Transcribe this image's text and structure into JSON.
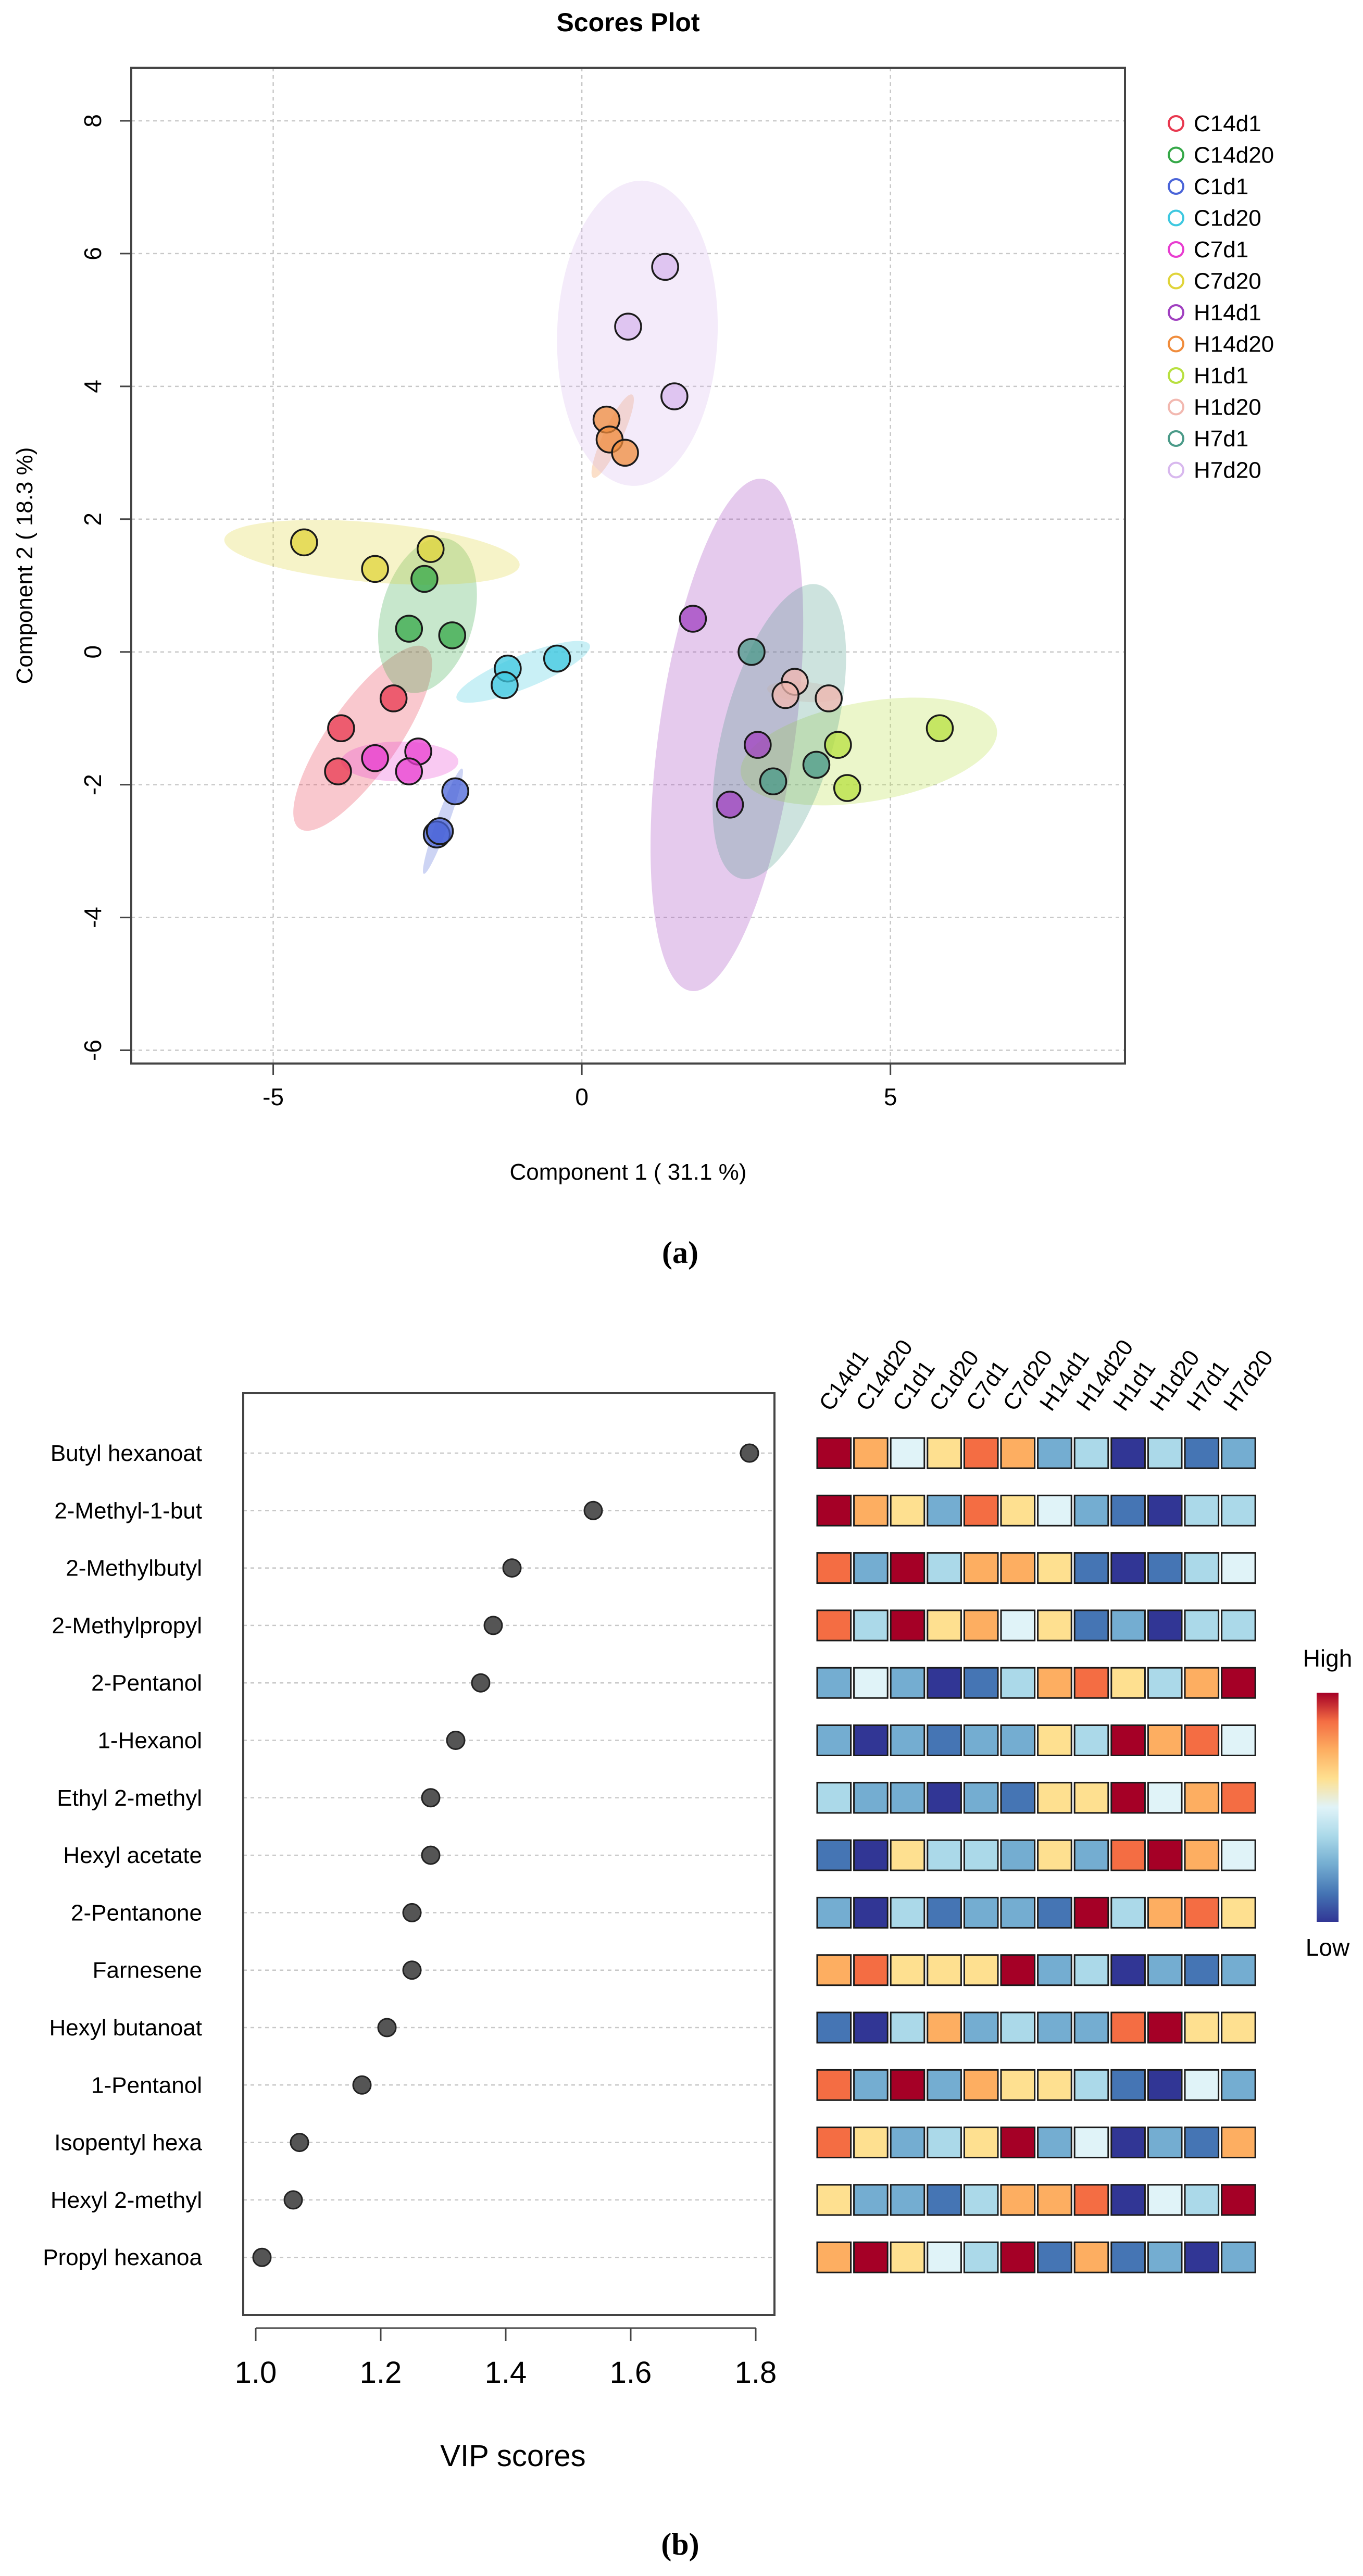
{
  "panel_labels": {
    "a": "(a)",
    "b": "(b)"
  },
  "chart_data": [
    {
      "type": "scatter",
      "title": "Scores Plot",
      "xlabel": "Component 1 ( 31.1 %)",
      "ylabel": "Component 2 ( 18.3 %)",
      "xlim": [
        -7.3,
        8.8
      ],
      "ylim": [
        -6.2,
        8.8
      ],
      "xticks": [
        -5,
        0,
        5
      ],
      "yticks": [
        -6,
        -4,
        -2,
        0,
        2,
        4,
        6,
        8
      ],
      "grid": true,
      "legend_position": "right",
      "groups": [
        {
          "name": "C14d1",
          "color": "#e8384f",
          "points": [
            [
              -3.9,
              -1.15
            ],
            [
              -3.05,
              -0.7
            ],
            [
              -3.95,
              -1.8
            ]
          ],
          "ellipse": {
            "cx": -3.55,
            "cy": -1.3,
            "rx": 1.7,
            "ry": 0.55,
            "angle": 55
          }
        },
        {
          "name": "C14d20",
          "color": "#35a848",
          "points": [
            [
              -2.55,
              1.1
            ],
            [
              -2.8,
              0.35
            ],
            [
              -2.1,
              0.25
            ]
          ],
          "ellipse": {
            "cx": -2.5,
            "cy": 0.55,
            "rx": 1.2,
            "ry": 0.75,
            "angle": 75
          }
        },
        {
          "name": "C1d1",
          "color": "#4a64d8",
          "points": [
            [
              -2.05,
              -2.1
            ],
            [
              -2.35,
              -2.75
            ],
            [
              -2.3,
              -2.7
            ]
          ],
          "ellipse": {
            "cx": -2.25,
            "cy": -2.55,
            "rx": 0.85,
            "ry": 0.1,
            "angle": 70
          }
        },
        {
          "name": "C1d20",
          "color": "#3ec8e0",
          "points": [
            [
              -1.2,
              -0.25
            ],
            [
              -1.25,
              -0.5
            ],
            [
              -0.4,
              -0.1
            ]
          ],
          "ellipse": {
            "cx": -0.95,
            "cy": -0.3,
            "rx": 1.15,
            "ry": 0.25,
            "angle": 22
          }
        },
        {
          "name": "C7d1",
          "color": "#e83dd0",
          "points": [
            [
              -3.35,
              -1.6
            ],
            [
              -2.65,
              -1.5
            ],
            [
              -2.8,
              -1.8
            ]
          ],
          "ellipse": {
            "cx": -2.95,
            "cy": -1.65,
            "rx": 0.95,
            "ry": 0.3,
            "angle": 0
          }
        },
        {
          "name": "C7d20",
          "color": "#e0d43a",
          "points": [
            [
              -4.5,
              1.65
            ],
            [
              -3.35,
              1.25
            ],
            [
              -2.45,
              1.55
            ]
          ],
          "ellipse": {
            "cx": -3.4,
            "cy": 1.5,
            "rx": 2.4,
            "ry": 0.45,
            "angle": -5
          }
        },
        {
          "name": "H14d1",
          "color": "#a040c0",
          "points": [
            [
              1.8,
              0.5
            ],
            [
              2.85,
              -1.4
            ],
            [
              2.4,
              -2.3
            ]
          ],
          "ellipse": {
            "cx": 2.35,
            "cy": -1.25,
            "rx": 3.9,
            "ry": 1.1,
            "angle": 82
          }
        },
        {
          "name": "H14d20",
          "color": "#f08c3c",
          "points": [
            [
              0.4,
              3.5
            ],
            [
              0.45,
              3.2
            ],
            [
              0.7,
              3.0
            ]
          ],
          "ellipse": {
            "cx": 0.5,
            "cy": 3.25,
            "rx": 0.7,
            "ry": 0.15,
            "angle": 65
          }
        },
        {
          "name": "H1d1",
          "color": "#b8e040",
          "points": [
            [
              5.8,
              -1.15
            ],
            [
              4.15,
              -1.4
            ],
            [
              4.3,
              -2.05
            ]
          ],
          "ellipse": {
            "cx": 4.65,
            "cy": -1.5,
            "rx": 2.1,
            "ry": 0.75,
            "angle": 10
          }
        },
        {
          "name": "H1d20",
          "color": "#f2b8b0",
          "points": [
            [
              3.45,
              -0.45
            ],
            [
              3.3,
              -0.65
            ],
            [
              4.0,
              -0.7
            ]
          ],
          "ellipse": {
            "cx": 3.6,
            "cy": -0.6,
            "rx": 0.6,
            "ry": 0.15,
            "angle": -5
          }
        },
        {
          "name": "H7d1",
          "color": "#4a9a88",
          "points": [
            [
              2.75,
              0.0
            ],
            [
              3.1,
              -1.95
            ],
            [
              3.8,
              -1.7
            ]
          ],
          "ellipse": {
            "cx": 3.2,
            "cy": -1.2,
            "rx": 2.3,
            "ry": 0.9,
            "angle": 75
          }
        },
        {
          "name": "H7d20",
          "color": "#d8b8ee",
          "points": [
            [
              1.35,
              5.8
            ],
            [
              0.75,
              4.9
            ],
            [
              1.5,
              3.85
            ]
          ],
          "ellipse": {
            "cx": 0.9,
            "cy": 4.8,
            "rx": 2.3,
            "ry": 1.3,
            "angle": 88
          }
        }
      ]
    },
    {
      "type": "scatter",
      "subtype": "vip-dot-plot",
      "xlabel": "VIP scores",
      "xlim": [
        0.98,
        1.83
      ],
      "xticks": [
        "1.0",
        "1.2",
        "1.4",
        "1.6",
        "1.8"
      ],
      "features": [
        "Butyl hexanoat",
        "2-Methyl-1-but",
        "2-Methylbutyl",
        "2-Methylpropyl",
        "2-Pentanol",
        "1-Hexanol",
        "Ethyl 2-methyl",
        "Hexyl acetate",
        "2-Pentanone",
        "Farnesene",
        "Hexyl butanoat",
        "1-Pentanol",
        "Isopentyl hexa",
        "Hexyl 2-methyl",
        "Propyl hexanoa"
      ],
      "values": [
        1.79,
        1.54,
        1.41,
        1.38,
        1.36,
        1.32,
        1.28,
        1.28,
        1.25,
        1.25,
        1.21,
        1.17,
        1.07,
        1.06,
        1.01
      ]
    },
    {
      "type": "heatmap",
      "columns": [
        "C14d1",
        "C14d20",
        "C1d1",
        "C1d20",
        "C7d1",
        "C7d20",
        "H14d1",
        "H14d20",
        "H1d1",
        "H1d20",
        "H7d1",
        "H7d20"
      ],
      "rows": [
        "Butyl hexanoat",
        "2-Methyl-1-but",
        "2-Methylbutyl",
        "2-Methylpropyl",
        "2-Pentanol",
        "1-Hexanol",
        "Ethyl 2-methyl",
        "Hexyl acetate",
        "2-Pentanone",
        "Farnesene",
        "Hexyl butanoat",
        "1-Pentanol",
        "Isopentyl hexa",
        "Hexyl 2-methyl",
        "Propyl hexanoa"
      ],
      "scale_range": [
        0,
        8
      ],
      "values": [
        [
          8,
          6,
          4,
          5,
          7,
          6,
          2,
          3,
          0,
          3,
          1,
          2
        ],
        [
          8,
          6,
          5,
          2,
          7,
          5,
          4,
          2,
          1,
          0,
          3,
          3
        ],
        [
          7,
          2,
          8,
          3,
          6,
          6,
          5,
          1,
          0,
          1,
          3,
          4
        ],
        [
          7,
          3,
          8,
          5,
          6,
          4,
          5,
          1,
          2,
          0,
          3,
          3
        ],
        [
          2,
          4,
          2,
          0,
          1,
          3,
          6,
          7,
          5,
          3,
          6,
          8
        ],
        [
          2,
          0,
          2,
          1,
          2,
          2,
          5,
          3,
          8,
          6,
          7,
          4
        ],
        [
          3,
          2,
          2,
          0,
          2,
          1,
          5,
          5,
          8,
          4,
          6,
          7
        ],
        [
          1,
          0,
          5,
          3,
          3,
          2,
          5,
          2,
          7,
          8,
          6,
          4
        ],
        [
          2,
          0,
          3,
          1,
          2,
          2,
          1,
          8,
          3,
          6,
          7,
          5
        ],
        [
          6,
          7,
          5,
          5,
          5,
          8,
          2,
          3,
          0,
          2,
          1,
          2
        ],
        [
          1,
          0,
          3,
          6,
          2,
          3,
          2,
          2,
          7,
          8,
          5,
          5
        ],
        [
          7,
          2,
          8,
          2,
          6,
          5,
          5,
          3,
          1,
          0,
          4,
          2
        ],
        [
          7,
          5,
          2,
          3,
          5,
          8,
          2,
          4,
          0,
          2,
          1,
          6
        ],
        [
          5,
          2,
          2,
          1,
          3,
          6,
          6,
          7,
          0,
          4,
          3,
          8
        ],
        [
          6,
          8,
          5,
          4,
          3,
          8,
          1,
          6,
          1,
          2,
          0,
          2
        ]
      ],
      "palette": [
        "#313695",
        "#4575b4",
        "#74add1",
        "#abd9e9",
        "#e0f3f8",
        "#fee090",
        "#fdae61",
        "#f46d43",
        "#a50026"
      ],
      "legend": {
        "high": "High",
        "low": "Low",
        "position": "right"
      }
    }
  ]
}
